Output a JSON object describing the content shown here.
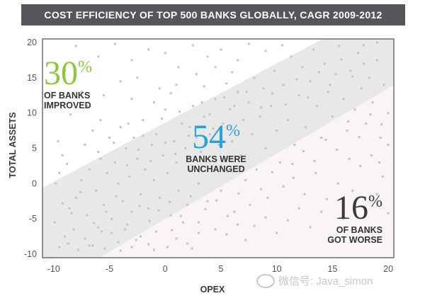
{
  "chart_data": {
    "type": "scatter",
    "title": "COST EFFICIENCY OF TOP 500 BANKS GLOBALLY, CAGR 2009-2012",
    "xlabel": "OPEX",
    "ylabel": "TOTAL ASSETS",
    "xlim": [
      -11,
      20.5
    ],
    "ylim": [
      -10.5,
      20.5
    ],
    "xticks": [
      -10,
      -5,
      0,
      5,
      10,
      15,
      20
    ],
    "yticks": [
      20,
      15,
      10,
      5,
      0,
      -5,
      -10
    ],
    "grid": false,
    "bands": [
      {
        "name": "improved",
        "color": "#ffffff"
      },
      {
        "name": "unchanged",
        "color": "#e8e8e8"
      },
      {
        "name": "worse",
        "color": "#faf4f6"
      }
    ],
    "annotations": [
      {
        "id": "improved",
        "value": "30",
        "unit": "%",
        "text_line1": "OF BANKS",
        "text_line2": "IMPROVED",
        "color": "#8dc63f"
      },
      {
        "id": "unchanged",
        "value": "54",
        "unit": "%",
        "text_line1": "BANKS WERE",
        "text_line2": "UNCHANGED",
        "color": "#29a3d7"
      },
      {
        "id": "worse",
        "value": "16",
        "unit": "%",
        "text_line1": "OF BANKS",
        "text_line2": "GOT WORSE",
        "color": "#3a3a3a"
      }
    ],
    "point_color": "#c4c4c4",
    "points": [
      [
        -9.5,
        -9.0
      ],
      [
        -9.0,
        -7.5
      ],
      [
        -8.7,
        -8.5
      ],
      [
        -8.2,
        -6.5
      ],
      [
        -7.8,
        -9.4
      ],
      [
        -7.2,
        -7.8
      ],
      [
        -6.5,
        -8.8
      ],
      [
        -6.0,
        -6.2
      ],
      [
        -5.4,
        -9.2
      ],
      [
        -4.8,
        -7.0
      ],
      [
        -4.2,
        -8.3
      ],
      [
        -3.6,
        -6.5
      ],
      [
        -3.0,
        -9.0
      ],
      [
        -2.2,
        -7.5
      ],
      [
        -1.5,
        -8.6
      ],
      [
        -0.8,
        -6.8
      ],
      [
        0.2,
        -9.0
      ],
      [
        1.0,
        -7.8
      ],
      [
        2.0,
        -8.5
      ],
      [
        3.0,
        -7.0
      ],
      [
        -9.8,
        0.0
      ],
      [
        -9.5,
        1.5
      ],
      [
        -9.2,
        4.0
      ],
      [
        -9.6,
        6.0
      ],
      [
        -8.8,
        2.8
      ],
      [
        -8.5,
        9.8
      ],
      [
        -8.0,
        -2.0
      ],
      [
        -7.5,
        0.5
      ],
      [
        -7.2,
        5.5
      ],
      [
        -7.0,
        -4.5
      ],
      [
        -6.8,
        2.0
      ],
      [
        -6.5,
        7.5
      ],
      [
        -6.2,
        -1.0
      ],
      [
        -6.0,
        4.5
      ],
      [
        -5.8,
        9.0
      ],
      [
        -5.5,
        -3.0
      ],
      [
        -5.2,
        1.5
      ],
      [
        -5.0,
        6.5
      ],
      [
        -4.8,
        -5.0
      ],
      [
        -4.5,
        3.0
      ],
      [
        -4.2,
        0.0
      ],
      [
        -4.0,
        8.0
      ],
      [
        -3.8,
        -2.5
      ],
      [
        -3.5,
        5.0
      ],
      [
        -3.2,
        1.0
      ],
      [
        -3.0,
        -4.0
      ],
      [
        -2.8,
        6.5
      ],
      [
        -2.5,
        3.5
      ],
      [
        -2.2,
        -1.5
      ],
      [
        -2.0,
        9.0
      ],
      [
        -1.8,
        2.0
      ],
      [
        -1.5,
        -3.5
      ],
      [
        -1.2,
        5.5
      ],
      [
        -1.0,
        0.5
      ],
      [
        -0.8,
        7.0
      ],
      [
        -0.5,
        -2.0
      ],
      [
        -0.2,
        4.0
      ],
      [
        0.0,
        10.5
      ],
      [
        0.2,
        1.5
      ],
      [
        0.5,
        -4.5
      ],
      [
        0.8,
        6.0
      ],
      [
        1.0,
        3.0
      ],
      [
        1.2,
        -1.0
      ],
      [
        1.5,
        8.5
      ],
      [
        1.8,
        5.0
      ],
      [
        2.0,
        -3.0
      ],
      [
        2.2,
        2.0
      ],
      [
        2.5,
        11.0
      ],
      [
        2.8,
        6.5
      ],
      [
        3.0,
        0.0
      ],
      [
        3.2,
        4.5
      ],
      [
        3.5,
        9.5
      ],
      [
        3.8,
        -2.5
      ],
      [
        4.0,
        7.0
      ],
      [
        4.2,
        2.5
      ],
      [
        4.5,
        12.0
      ],
      [
        4.8,
        5.5
      ],
      [
        5.0,
        -1.0
      ],
      [
        5.2,
        8.5
      ],
      [
        5.5,
        3.5
      ],
      [
        5.8,
        10.5
      ],
      [
        6.0,
        6.0
      ],
      [
        6.2,
        -4.0
      ],
      [
        6.5,
        13.0
      ],
      [
        6.8,
        4.0
      ],
      [
        7.0,
        9.0
      ],
      [
        7.2,
        0.5
      ],
      [
        7.5,
        11.5
      ],
      [
        7.8,
        7.0
      ],
      [
        8.0,
        15.0
      ],
      [
        8.2,
        2.0
      ],
      [
        8.5,
        9.5
      ],
      [
        8.8,
        13.5
      ],
      [
        9.0,
        5.0
      ],
      [
        9.2,
        -2.0
      ],
      [
        9.5,
        11.0
      ],
      [
        9.8,
        16.0
      ],
      [
        10.0,
        7.5
      ],
      [
        10.3,
        3.0
      ],
      [
        10.6,
        14.0
      ],
      [
        11.0,
        9.0
      ],
      [
        11.3,
        18.0
      ],
      [
        11.6,
        5.5
      ],
      [
        12.0,
        12.5
      ],
      [
        12.3,
        16.5
      ],
      [
        12.6,
        8.0
      ],
      [
        13.0,
        14.5
      ],
      [
        13.3,
        19.0
      ],
      [
        13.6,
        11.0
      ],
      [
        14.0,
        6.5
      ],
      [
        14.3,
        17.0
      ],
      [
        14.6,
        13.0
      ],
      [
        15.0,
        9.5
      ],
      [
        15.3,
        15.5
      ],
      [
        15.6,
        19.5
      ],
      [
        16.0,
        12.0
      ],
      [
        16.3,
        7.5
      ],
      [
        16.6,
        16.0
      ],
      [
        17.0,
        10.5
      ],
      [
        17.3,
        18.5
      ],
      [
        17.6,
        13.5
      ],
      [
        18.0,
        8.5
      ],
      [
        18.3,
        15.0
      ],
      [
        18.6,
        11.5
      ],
      [
        19.0,
        17.5
      ],
      [
        19.3,
        6.5
      ],
      [
        19.6,
        14.0
      ],
      [
        20.0,
        10.0
      ],
      [
        19.0,
        20.0
      ],
      [
        17.8,
        19.6
      ],
      [
        -8.0,
        19.5
      ],
      [
        -6.0,
        18.0
      ],
      [
        -4.5,
        19.8
      ],
      [
        -3.0,
        17.5
      ],
      [
        -1.5,
        19.0
      ],
      [
        0.0,
        18.5
      ],
      [
        1.2,
        16.5
      ],
      [
        2.5,
        19.6
      ],
      [
        3.8,
        18.0
      ],
      [
        5.0,
        19.0
      ],
      [
        6.5,
        17.5
      ],
      [
        7.5,
        19.8
      ],
      [
        9.0,
        18.8
      ],
      [
        10.5,
        19.6
      ],
      [
        -2.5,
        15.0
      ],
      [
        -0.5,
        13.5
      ],
      [
        1.0,
        14.0
      ],
      [
        2.8,
        15.5
      ],
      [
        4.5,
        16.5
      ],
      [
        6.0,
        15.8
      ],
      [
        -9.0,
        16.0
      ],
      [
        -7.5,
        13.0
      ],
      [
        -5.5,
        12.5
      ],
      [
        -4.0,
        14.5
      ],
      [
        -7.0,
        11.0
      ],
      [
        -3.0,
        12.0
      ],
      [
        -1.0,
        11.5
      ],
      [
        0.5,
        12.8
      ],
      [
        3.5,
        13.8
      ],
      [
        5.5,
        14.2
      ],
      [
        3.0,
        -5.5
      ],
      [
        4.5,
        -6.5
      ],
      [
        5.5,
        -7.2
      ],
      [
        6.5,
        -5.8
      ],
      [
        7.2,
        -8.0
      ],
      [
        8.0,
        -6.0
      ],
      [
        9.0,
        -4.8
      ],
      [
        10.0,
        -7.0
      ],
      [
        11.0,
        -5.2
      ],
      [
        12.0,
        -3.5
      ],
      [
        13.0,
        -6.2
      ],
      [
        14.0,
        -4.0
      ],
      [
        15.0,
        -8.2
      ],
      [
        16.0,
        -5.0
      ],
      [
        17.0,
        -2.5
      ],
      [
        18.0,
        -6.8
      ],
      [
        19.0,
        -1.5
      ],
      [
        20.0,
        -4.2
      ],
      [
        11.5,
        0.8
      ],
      [
        13.5,
        1.5
      ],
      [
        15.5,
        0.0
      ],
      [
        17.5,
        2.5
      ],
      [
        19.5,
        1.0
      ],
      [
        12.5,
        -1.5
      ],
      [
        14.5,
        -2.2
      ],
      [
        16.5,
        3.5
      ],
      [
        18.5,
        4.0
      ],
      [
        20.0,
        5.5
      ],
      [
        16.8,
        -1.0
      ],
      [
        19.2,
        3.0
      ],
      [
        -6.8,
        -8.8
      ],
      [
        -5.7,
        -6.8
      ],
      [
        -4.0,
        -9.5
      ],
      [
        -2.6,
        -8.0
      ],
      [
        -1.0,
        -9.4
      ],
      [
        0.6,
        -6.6
      ],
      [
        1.6,
        -5.5
      ],
      [
        2.4,
        -9.2
      ],
      [
        -8.4,
        -4.2
      ],
      [
        -9.2,
        -2.8
      ],
      [
        -3.3,
        8.5
      ],
      [
        -2.0,
        6.8
      ],
      [
        -0.3,
        9.2
      ],
      [
        1.3,
        10.2
      ],
      [
        2.2,
        8.0
      ],
      [
        3.3,
        11.5
      ],
      [
        4.0,
        9.8
      ],
      [
        5.3,
        12.2
      ],
      [
        6.2,
        11.0
      ],
      [
        7.3,
        13.0
      ],
      [
        -5.8,
        3.5
      ],
      [
        -4.6,
        5.8
      ],
      [
        -3.4,
        2.6
      ],
      [
        -2.4,
        4.8
      ],
      [
        -1.3,
        3.2
      ],
      [
        0.0,
        5.8
      ],
      [
        0.9,
        4.2
      ],
      [
        2.1,
        6.8
      ],
      [
        3.4,
        5.2
      ],
      [
        4.3,
        7.8
      ],
      [
        8.6,
        10.8
      ],
      [
        9.6,
        12.8
      ],
      [
        10.8,
        11.2
      ],
      [
        11.8,
        14.8
      ],
      [
        12.8,
        12.2
      ],
      [
        13.8,
        15.8
      ],
      [
        14.8,
        14.0
      ],
      [
        15.8,
        17.6
      ],
      [
        16.8,
        15.2
      ],
      [
        17.8,
        17.0
      ],
      [
        -9.9,
        -5.5
      ],
      [
        -8.6,
        -3.5
      ],
      [
        -7.6,
        -1.2
      ],
      [
        -6.4,
        -5.6
      ],
      [
        -5.3,
        -4.0
      ],
      [
        -4.4,
        -1.8
      ],
      [
        -3.4,
        -5.8
      ],
      [
        -2.3,
        -3.2
      ],
      [
        -1.4,
        -5.3
      ],
      [
        -0.6,
        -3.8
      ],
      [
        0.4,
        -2.6
      ],
      [
        1.4,
        -4.6
      ],
      [
        2.3,
        -1.8
      ],
      [
        3.6,
        -3.6
      ],
      [
        4.6,
        -2.4
      ],
      [
        5.6,
        -4.6
      ],
      [
        6.6,
        -1.4
      ],
      [
        7.6,
        -3.0
      ],
      [
        8.6,
        -0.8
      ],
      [
        9.6,
        1.6
      ],
      [
        10.6,
        -0.4
      ],
      [
        11.4,
        2.8
      ],
      [
        12.4,
        4.6
      ],
      [
        13.4,
        3.2
      ],
      [
        14.4,
        6.2
      ],
      [
        15.4,
        4.8
      ],
      [
        16.4,
        8.8
      ],
      [
        17.4,
        6.6
      ],
      [
        18.4,
        9.8
      ],
      [
        19.4,
        8.4
      ]
    ]
  },
  "watermark": {
    "text": "微信号: Java_simon"
  }
}
